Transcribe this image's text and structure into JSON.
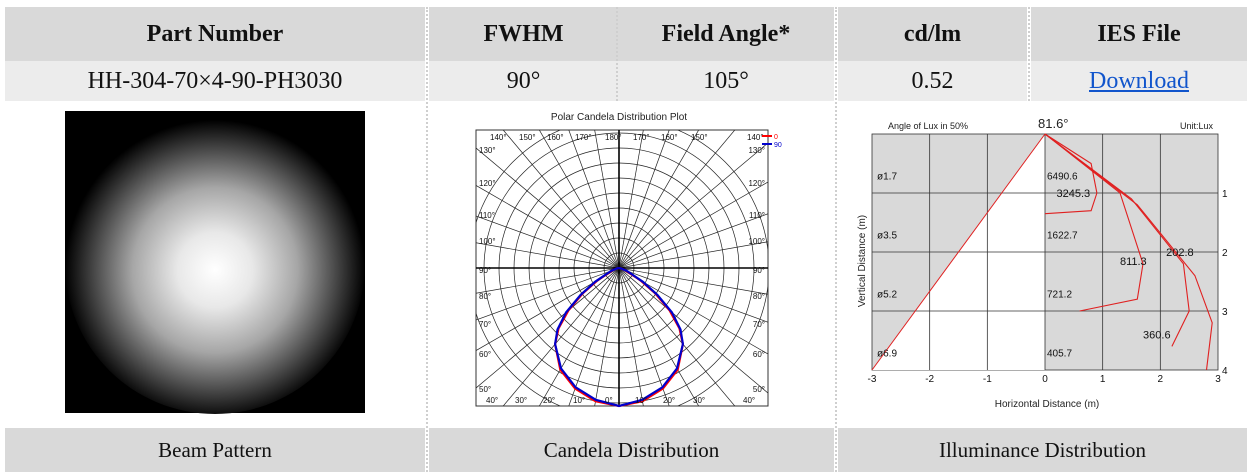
{
  "header": {
    "part_number": "Part Number",
    "fwhm": "FWHM",
    "field_angle": "Field Angle*",
    "cd_lm": "cd/lm",
    "ies_file": "IES File"
  },
  "row": {
    "part_number": "HH-304-70×4-90-PH3030",
    "fwhm": "90°",
    "field_angle": "105°",
    "cd_lm": "0.52",
    "ies_link": "Download"
  },
  "footer": {
    "beam": "Beam Pattern",
    "candela": "Candela Distribution",
    "illuminance": "Illuminance Distribution"
  },
  "polar": {
    "title": "Polar Candela Distribution Plot",
    "legend": [
      "0",
      "90"
    ],
    "legend_colors": [
      "#ff0000",
      "#0000cc"
    ],
    "top_labels": [
      "140°",
      "150°",
      "160°",
      "170°",
      "180°",
      "170°",
      "160°",
      "150°",
      "140°"
    ],
    "side_left": [
      "130°",
      "120°",
      "110°",
      "100°",
      "90°",
      "80°",
      "70°",
      "60°",
      "50°"
    ],
    "side_right": [
      "130°",
      "120°",
      "110°",
      "100°",
      "90°",
      "80°",
      "70°",
      "60°",
      "50°"
    ],
    "bottom_labels": [
      "40°",
      "30°",
      "20°",
      "10°",
      "0°",
      "10°",
      "20°",
      "30°",
      "40°"
    ]
  },
  "illum": {
    "angle_label": "Angle of Lux in 50%",
    "angle_value": "81.6°",
    "unit": "Unit:Lux",
    "ylabel": "Vertical Distance (m)",
    "xlabel": "Horizontal Distance (m)",
    "x_ticks": [
      "-3",
      "-2",
      "-1",
      "0",
      "1",
      "2",
      "3"
    ],
    "y_ticks": [
      "1",
      "2",
      "3",
      "4"
    ],
    "diam_labels": [
      "ø1.7",
      "ø3.5",
      "ø5.2",
      "ø6.9"
    ],
    "lux_center": [
      "6490.6",
      "1622.7",
      "721.2",
      "405.7"
    ],
    "iso_labels": [
      "3245.3",
      "811.3",
      "202.8",
      "360.6"
    ]
  },
  "chart_data": [
    {
      "type": "line",
      "title": "Polar Candela Distribution Plot",
      "series": [
        {
          "name": "0",
          "angles_deg": [
            0,
            10,
            20,
            30,
            40,
            45,
            50,
            55,
            60,
            70,
            80,
            90
          ],
          "values": [
            1.0,
            0.98,
            0.93,
            0.85,
            0.72,
            0.62,
            0.48,
            0.32,
            0.18,
            0.05,
            0.01,
            0
          ]
        },
        {
          "name": "90",
          "angles_deg": [
            0,
            10,
            20,
            30,
            40,
            45,
            50,
            55,
            60,
            70,
            80,
            90
          ],
          "values": [
            1.0,
            0.97,
            0.92,
            0.84,
            0.72,
            0.63,
            0.5,
            0.34,
            0.2,
            0.06,
            0.01,
            0
          ]
        }
      ]
    },
    {
      "type": "line",
      "title": "Angle of Lux in 50%",
      "xlabel": "Horizontal Distance (m)",
      "ylabel": "Vertical Distance (m)",
      "xlim": [
        -3,
        3
      ],
      "ylim": [
        0,
        4
      ],
      "series": [
        {
          "name": "6490.6",
          "x": [
            0,
            0.8,
            0.9,
            0.8,
            0
          ],
          "y": [
            0,
            0.5,
            1.0,
            1.3,
            1.35
          ]
        },
        {
          "name": "1622.7",
          "x": [
            0,
            1.3,
            1.7,
            1.6,
            0.6
          ],
          "y": [
            0,
            1.0,
            2.2,
            2.8,
            3.0
          ]
        },
        {
          "name": "721.2",
          "x": [
            0,
            1.5,
            2.4,
            2.5,
            2.2
          ],
          "y": [
            0,
            1.1,
            2.2,
            3.0,
            3.6
          ]
        },
        {
          "name": "405.7",
          "x": [
            0,
            1.6,
            2.6,
            2.9,
            2.8
          ],
          "y": [
            0,
            1.2,
            2.4,
            3.2,
            4.0
          ]
        }
      ]
    }
  ]
}
